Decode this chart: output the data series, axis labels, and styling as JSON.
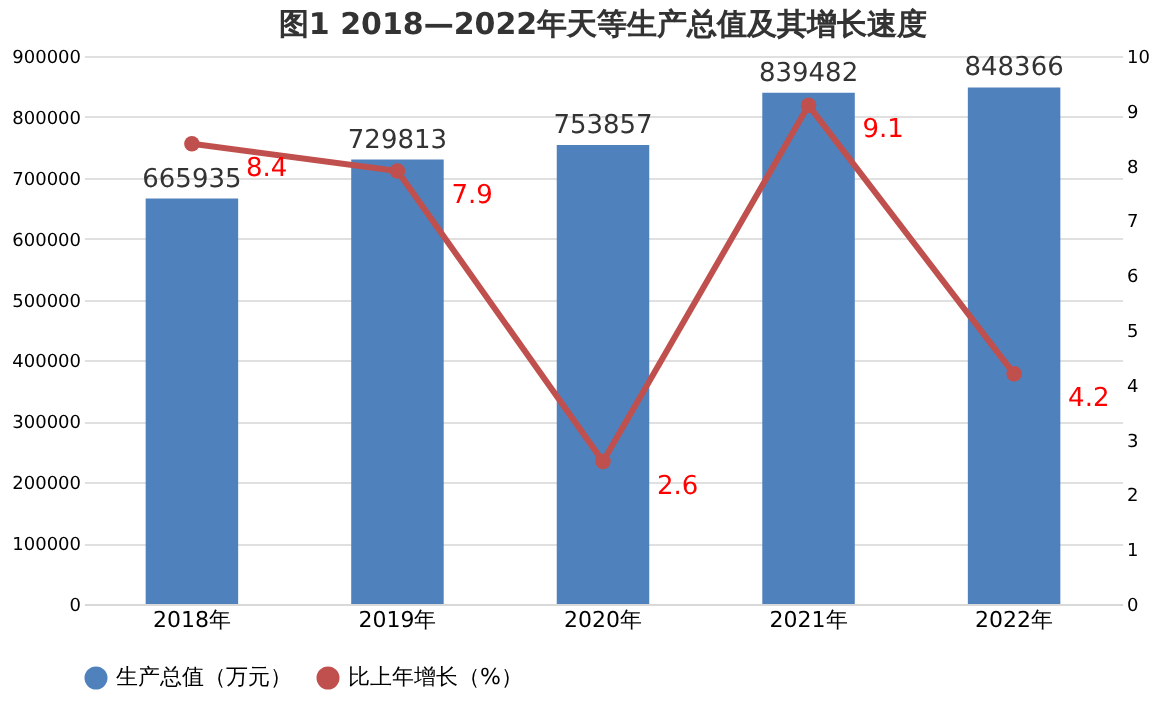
{
  "chart_data": {
    "type": "bar",
    "title": "图1  2018—2022年天等生产总值及其增长速度",
    "categories": [
      "2018年",
      "2019年",
      "2020年",
      "2021年",
      "2022年"
    ],
    "series": [
      {
        "name": "生产总值（万元）",
        "color": "#4f81bd",
        "values": [
          665935,
          729813,
          753857,
          839482,
          848366
        ]
      },
      {
        "name": "比上年增长（%）",
        "type": "line",
        "axis": "y2",
        "color": "#c0504d",
        "values": [
          8.4,
          7.9,
          2.6,
          9.1,
          4.2
        ]
      }
    ],
    "ylim": [
      0,
      900000
    ],
    "yticks": [
      0,
      100000,
      200000,
      300000,
      400000,
      500000,
      600000,
      700000,
      800000,
      900000
    ],
    "y2lim": [
      0,
      10
    ],
    "y2ticks": [
      0,
      1,
      2,
      3,
      4,
      5,
      6,
      7,
      8,
      9,
      10
    ],
    "data_labels": true,
    "marker": "circle",
    "legend": "bottom",
    "grid": "y"
  }
}
